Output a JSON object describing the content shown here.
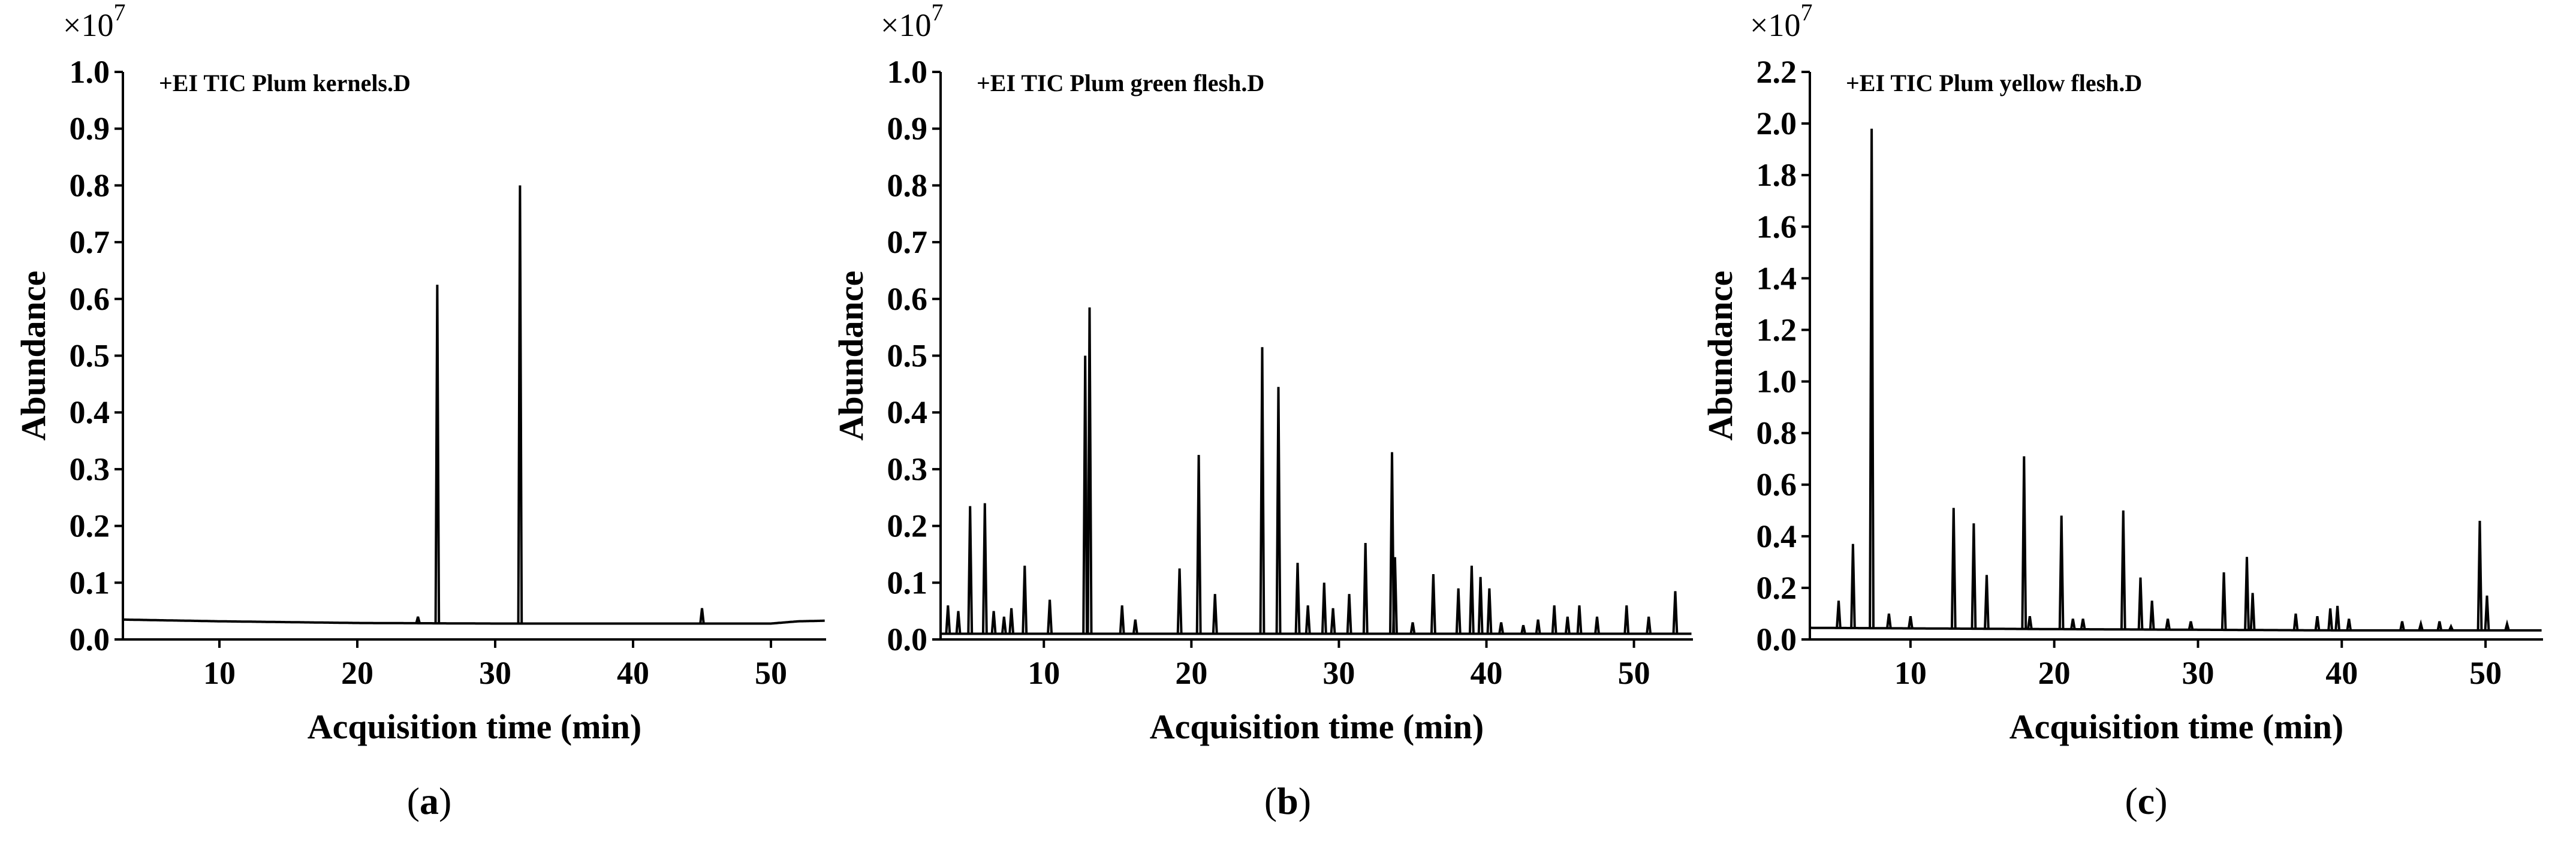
{
  "chart_data": [
    {
      "type": "line",
      "label": "a",
      "title": "+EI TIC Plum kernels.D",
      "multiplier_label": "×10",
      "multiplier_exponent": "7",
      "xlabel": "Acquisition time (min)",
      "ylabel": "Abundance",
      "xlim": [
        3,
        54
      ],
      "ylim": [
        0,
        1.0
      ],
      "xticks": [
        10,
        20,
        30,
        40,
        50
      ],
      "yticks": [
        0.0,
        0.1,
        0.2,
        0.3,
        0.4,
        0.5,
        0.6,
        0.7,
        0.8,
        0.9,
        1.0
      ],
      "ytick_labels": [
        "0.0",
        "0.1",
        "0.2",
        "0.3",
        "0.4",
        "0.5",
        "0.6",
        "0.7",
        "0.8",
        "0.9",
        "1.0"
      ],
      "baseline": [
        [
          3,
          0.035
        ],
        [
          10,
          0.032
        ],
        [
          20,
          0.029
        ],
        [
          30,
          0.028
        ],
        [
          40,
          0.028
        ],
        [
          50,
          0.028
        ],
        [
          52,
          0.032
        ],
        [
          54,
          0.033
        ]
      ],
      "peaks": [
        {
          "x": 24.4,
          "y": 0.04
        },
        {
          "x": 25.8,
          "y": 0.625
        },
        {
          "x": 31.8,
          "y": 0.8
        },
        {
          "x": 45.0,
          "y": 0.055
        }
      ]
    },
    {
      "type": "line",
      "label": "b",
      "title": "+EI TIC Plum green flesh.D",
      "multiplier_label": "×10",
      "multiplier_exponent": "7",
      "xlabel": "Acquisition time (min)",
      "ylabel": "Abundance",
      "xlim": [
        3,
        54
      ],
      "ylim": [
        0,
        1.0
      ],
      "xticks": [
        10,
        20,
        30,
        40,
        50
      ],
      "yticks": [
        0.0,
        0.1,
        0.2,
        0.3,
        0.4,
        0.5,
        0.6,
        0.7,
        0.8,
        0.9,
        1.0
      ],
      "ytick_labels": [
        "0.0",
        "0.1",
        "0.2",
        "0.3",
        "0.4",
        "0.5",
        "0.6",
        "0.7",
        "0.8",
        "0.9",
        "1.0"
      ],
      "baseline": [
        [
          3,
          0.01
        ],
        [
          54,
          0.01
        ]
      ],
      "peaks": [
        {
          "x": 3.5,
          "y": 0.06
        },
        {
          "x": 4.2,
          "y": 0.05
        },
        {
          "x": 5.0,
          "y": 0.235
        },
        {
          "x": 6.0,
          "y": 0.24
        },
        {
          "x": 6.6,
          "y": 0.05
        },
        {
          "x": 7.3,
          "y": 0.04
        },
        {
          "x": 7.8,
          "y": 0.055
        },
        {
          "x": 8.7,
          "y": 0.13
        },
        {
          "x": 10.4,
          "y": 0.07
        },
        {
          "x": 12.8,
          "y": 0.5
        },
        {
          "x": 13.1,
          "y": 0.585
        },
        {
          "x": 15.3,
          "y": 0.06
        },
        {
          "x": 16.2,
          "y": 0.035
        },
        {
          "x": 19.2,
          "y": 0.125
        },
        {
          "x": 20.5,
          "y": 0.325
        },
        {
          "x": 21.6,
          "y": 0.08
        },
        {
          "x": 24.8,
          "y": 0.515
        },
        {
          "x": 25.9,
          "y": 0.445
        },
        {
          "x": 27.2,
          "y": 0.135
        },
        {
          "x": 27.9,
          "y": 0.06
        },
        {
          "x": 29.0,
          "y": 0.1
        },
        {
          "x": 29.6,
          "y": 0.055
        },
        {
          "x": 30.7,
          "y": 0.08
        },
        {
          "x": 31.8,
          "y": 0.17
        },
        {
          "x": 33.6,
          "y": 0.33
        },
        {
          "x": 33.8,
          "y": 0.145
        },
        {
          "x": 35.0,
          "y": 0.03
        },
        {
          "x": 36.4,
          "y": 0.115
        },
        {
          "x": 38.1,
          "y": 0.09
        },
        {
          "x": 39.0,
          "y": 0.13
        },
        {
          "x": 39.6,
          "y": 0.11
        },
        {
          "x": 40.2,
          "y": 0.09
        },
        {
          "x": 41.0,
          "y": 0.03
        },
        {
          "x": 42.5,
          "y": 0.025
        },
        {
          "x": 43.5,
          "y": 0.035
        },
        {
          "x": 44.6,
          "y": 0.06
        },
        {
          "x": 45.5,
          "y": 0.04
        },
        {
          "x": 46.3,
          "y": 0.06
        },
        {
          "x": 47.5,
          "y": 0.04
        },
        {
          "x": 49.5,
          "y": 0.06
        },
        {
          "x": 51.0,
          "y": 0.04
        },
        {
          "x": 52.8,
          "y": 0.085
        }
      ]
    },
    {
      "type": "line",
      "label": "c",
      "title": "+EI TIC Plum yellow flesh.D",
      "multiplier_label": "×10",
      "multiplier_exponent": "7",
      "xlabel": "Acquisition time (min)",
      "ylabel": "Abundance",
      "xlim": [
        3,
        54
      ],
      "ylim": [
        0,
        2.2
      ],
      "xticks": [
        10,
        20,
        30,
        40,
        50
      ],
      "yticks": [
        0.0,
        0.2,
        0.4,
        0.6,
        0.8,
        1.0,
        1.2,
        1.4,
        1.6,
        1.8,
        2.0,
        2.2
      ],
      "ytick_labels": [
        "0.0",
        "0.2",
        "0.4",
        "0.6",
        "0.8",
        "1.0",
        "1.2",
        "1.4",
        "1.6",
        "1.8",
        "2.0",
        "2.2"
      ],
      "baseline": [
        [
          3,
          0.045
        ],
        [
          20,
          0.04
        ],
        [
          40,
          0.035
        ],
        [
          54,
          0.035
        ]
      ],
      "peaks": [
        {
          "x": 5.0,
          "y": 0.15
        },
        {
          "x": 6.0,
          "y": 0.37
        },
        {
          "x": 7.3,
          "y": 1.98
        },
        {
          "x": 8.5,
          "y": 0.1
        },
        {
          "x": 10.0,
          "y": 0.09
        },
        {
          "x": 13.0,
          "y": 0.51
        },
        {
          "x": 14.4,
          "y": 0.45
        },
        {
          "x": 15.3,
          "y": 0.25
        },
        {
          "x": 17.9,
          "y": 0.71
        },
        {
          "x": 18.3,
          "y": 0.09
        },
        {
          "x": 20.5,
          "y": 0.48
        },
        {
          "x": 21.3,
          "y": 0.08
        },
        {
          "x": 22.0,
          "y": 0.08
        },
        {
          "x": 24.8,
          "y": 0.5
        },
        {
          "x": 26.0,
          "y": 0.24
        },
        {
          "x": 26.8,
          "y": 0.15
        },
        {
          "x": 27.9,
          "y": 0.08
        },
        {
          "x": 29.5,
          "y": 0.07
        },
        {
          "x": 31.8,
          "y": 0.26
        },
        {
          "x": 33.4,
          "y": 0.32
        },
        {
          "x": 33.8,
          "y": 0.18
        },
        {
          "x": 36.8,
          "y": 0.1
        },
        {
          "x": 38.3,
          "y": 0.09
        },
        {
          "x": 39.2,
          "y": 0.12
        },
        {
          "x": 39.7,
          "y": 0.13
        },
        {
          "x": 40.5,
          "y": 0.08
        },
        {
          "x": 44.2,
          "y": 0.07
        },
        {
          "x": 45.5,
          "y": 0.06
        },
        {
          "x": 46.8,
          "y": 0.07
        },
        {
          "x": 47.6,
          "y": 0.05
        },
        {
          "x": 49.6,
          "y": 0.46
        },
        {
          "x": 50.1,
          "y": 0.17
        },
        {
          "x": 51.5,
          "y": 0.06
        }
      ]
    }
  ],
  "captions": [
    "a",
    "b",
    "c"
  ]
}
